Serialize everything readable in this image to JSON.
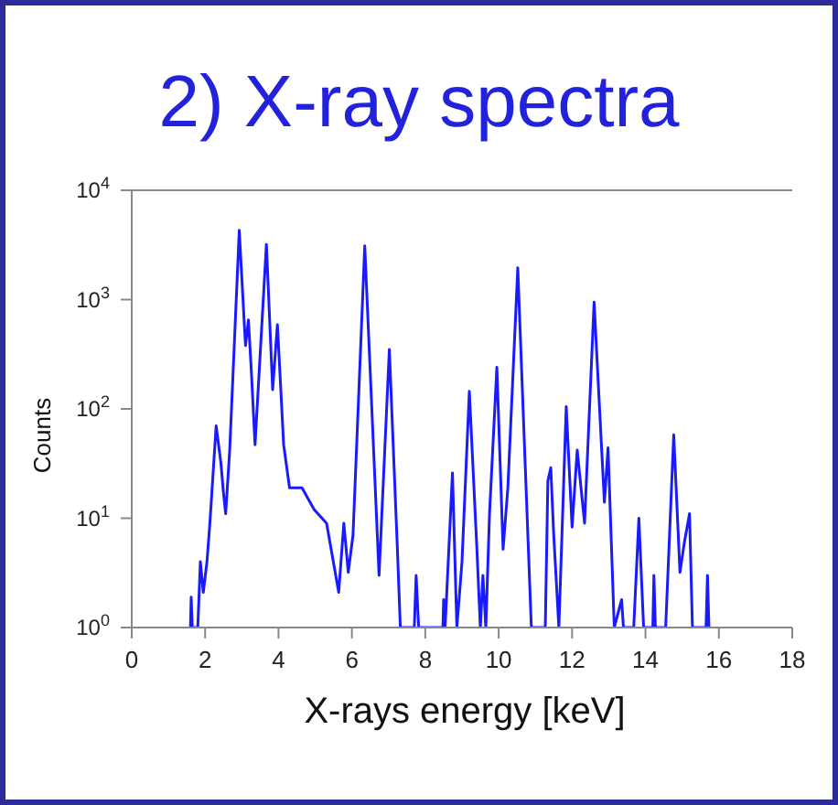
{
  "chart_data": {
    "type": "line",
    "title": "2) X-ray spectra",
    "xlabel": "X-rays energy [keV]",
    "ylabel": "Counts",
    "log": "y",
    "marker": "none",
    "line_style": "solid",
    "xlim": [
      0,
      18
    ],
    "xticks": [
      0,
      2,
      4,
      6,
      8,
      10,
      12,
      14,
      16,
      18
    ],
    "ylim": [
      1,
      10000
    ],
    "yticks": [
      {
        "value": 1,
        "label": "10$^{0}$"
      },
      {
        "value": 10,
        "label": "10$^{1}$"
      },
      {
        "value": 100,
        "label": "10$^{2}$"
      },
      {
        "value": 1000,
        "label": "10$^{3}$"
      },
      {
        "value": 10000,
        "label": "10$^{4}$"
      }
    ],
    "x": [
      1.6,
      1.62,
      1.65,
      1.8,
      1.87,
      1.95,
      2.05,
      2.13,
      2.3,
      2.43,
      2.5,
      2.56,
      2.67,
      2.93,
      3.1,
      3.18,
      3.26,
      3.36,
      3.67,
      3.84,
      3.97,
      4.14,
      4.3,
      4.64,
      4.97,
      5.31,
      5.64,
      5.78,
      5.9,
      6.03,
      6.35,
      6.74,
      7.02,
      7.24,
      7.32,
      7.7,
      7.75,
      7.82,
      8.48,
      8.5,
      8.54,
      8.74,
      8.86,
      9.0,
      9.2,
      9.4,
      9.5,
      9.57,
      9.65,
      9.75,
      9.95,
      10.12,
      10.25,
      10.52,
      10.89,
      11.27,
      11.34,
      11.42,
      11.5,
      11.64,
      11.84,
      12.0,
      12.14,
      12.34,
      12.6,
      12.88,
      12.98,
      13.15,
      13.35,
      13.4,
      13.68,
      13.82,
      13.95,
      14.2,
      14.23,
      14.27,
      14.55,
      14.77,
      14.94,
      15.06,
      15.2,
      15.28,
      15.65,
      15.69,
      15.73
    ],
    "series": [
      {
        "color": "#1a1aff",
        "values": [
          1,
          1.9,
          1,
          1,
          4,
          2.1,
          4,
          9,
          70,
          32,
          17,
          11,
          42,
          4300,
          380,
          650,
          220,
          47,
          3200,
          150,
          590,
          47,
          19,
          19,
          12,
          9,
          2.1,
          9,
          3.2,
          7,
          3100,
          3,
          350,
          5.2,
          1,
          1,
          3,
          1,
          1,
          1.8,
          1,
          26,
          1,
          4,
          145,
          5.8,
          1,
          3,
          1,
          11,
          240,
          5.2,
          19,
          1950,
          1,
          1,
          22,
          29,
          7,
          1,
          105,
          8.3,
          42,
          9,
          950,
          14,
          44,
          1,
          1.8,
          1,
          1,
          10,
          1,
          1,
          3,
          1,
          1,
          58,
          3.2,
          6,
          11,
          1,
          1,
          3,
          1
        ]
      }
    ]
  }
}
